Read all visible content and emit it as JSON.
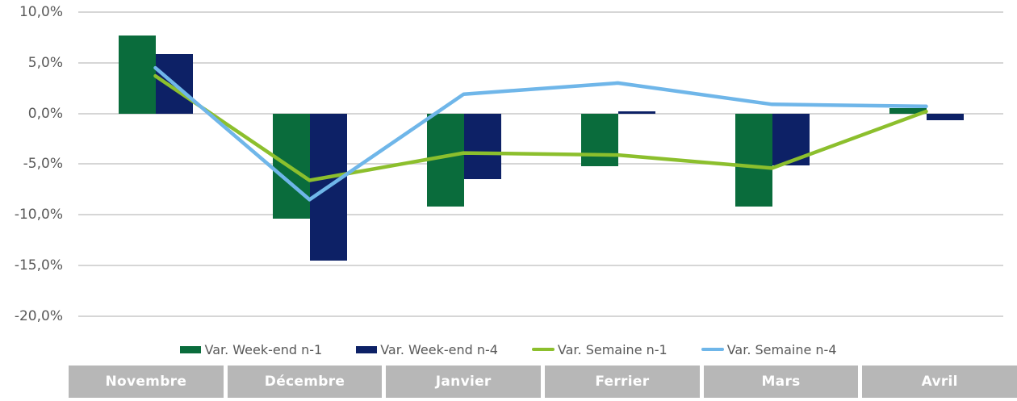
{
  "chart_data": {
    "type": "combo-bar-line",
    "title": "",
    "unit": "percent",
    "categories": [
      "Novembre",
      "Décembre",
      "Janvier",
      "Ferrier",
      "Mars",
      "Avril"
    ],
    "series": [
      {
        "name": "Var. Week-end n-1",
        "type": "bar",
        "color": "#0a6c3c",
        "values": [
          7.7,
          -10.4,
          -9.2,
          -5.2,
          -9.2,
          0.5
        ]
      },
      {
        "name": "Var. Week-end n-4",
        "type": "bar",
        "color": "#0d2166",
        "values": [
          5.9,
          -14.5,
          -6.5,
          0.2,
          -5.1,
          -0.7
        ]
      },
      {
        "name": "Var. Semaine n-1",
        "type": "line",
        "color": "#8cbf2d",
        "values": [
          3.7,
          -6.6,
          -3.9,
          -4.1,
          -5.4,
          0.2
        ]
      },
      {
        "name": "Var. Semaine n-4",
        "type": "line",
        "color": "#6fb6e9",
        "values": [
          4.5,
          -8.5,
          1.9,
          3.0,
          0.9,
          0.7
        ]
      }
    ],
    "y_axis": {
      "min": -20,
      "max": 10,
      "step": 5,
      "tick_labels": [
        "10,0%",
        "5,0%",
        "0,0%",
        "-5,0%",
        "-10,0%",
        "-15,0%",
        "-20,0%"
      ]
    },
    "grid": true,
    "legend_position": "bottom"
  },
  "colors": {
    "gridline": "#d6d6d6",
    "axis_text": "#595959",
    "band_background": "#b7b7b7",
    "band_text": "#ffffff"
  }
}
